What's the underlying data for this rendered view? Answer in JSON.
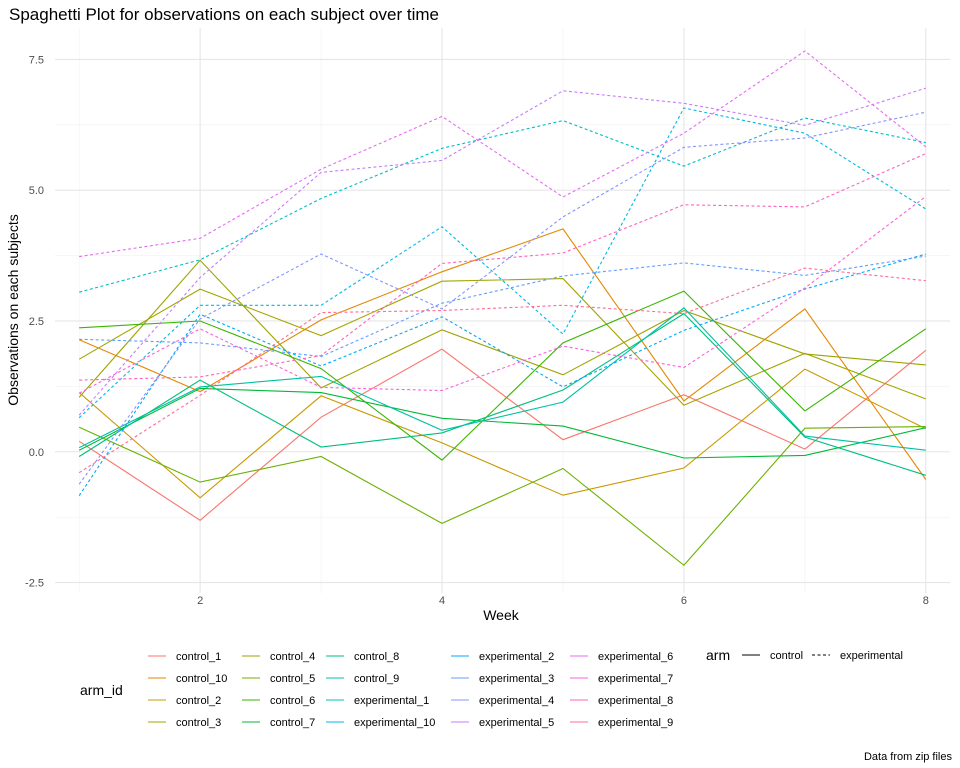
{
  "chart_data": {
    "type": "line",
    "title": "Spaghetti Plot for observations on each subject over time",
    "xlabel": "Week",
    "ylabel": "Observations on each subjects",
    "caption": "Data from zip files",
    "xlim": [
      0.8,
      8.2
    ],
    "ylim": [
      -2.7,
      8.1
    ],
    "x_ticks": [
      2,
      4,
      6,
      8
    ],
    "y_ticks": [
      -2.5,
      0.0,
      2.5,
      5.0,
      7.5
    ],
    "y_tick_labels": [
      "-2.5",
      "0.0",
      "2.5",
      "5.0",
      "7.5"
    ],
    "grid": true,
    "legend_position": "bottom",
    "x": [
      1,
      2,
      3,
      4,
      5,
      6,
      7,
      8
    ],
    "color_legend": {
      "title": "arm_id",
      "columns": [
        [
          "control_1",
          "control_10",
          "control_2",
          "control_3"
        ],
        [
          "control_4",
          "control_5",
          "control_6",
          "control_7"
        ],
        [
          "control_8",
          "control_9",
          "experimental_1",
          "experimental_10"
        ],
        [
          "experimental_2",
          "experimental_3",
          "experimental_4",
          "experimental_5"
        ],
        [
          "experimental_6",
          "experimental_7",
          "experimental_8",
          "experimental_9"
        ]
      ]
    },
    "linetype_legend": {
      "title": "arm",
      "entries": [
        {
          "label": "control",
          "dash": "solid"
        },
        {
          "label": "experimental",
          "dash": "dashed"
        }
      ]
    },
    "series": [
      {
        "name": "control_1",
        "arm": "control",
        "color": "#F8766D",
        "values": [
          0.2,
          -1.31,
          0.66,
          1.96,
          0.23,
          1.09,
          0.05,
          1.94
        ]
      },
      {
        "name": "control_10",
        "arm": "control",
        "color": "#E58700",
        "values": [
          2.14,
          1.15,
          2.52,
          3.44,
          4.26,
          0.97,
          2.73,
          -0.53
        ]
      },
      {
        "name": "control_2",
        "arm": "control",
        "color": "#C99800",
        "values": [
          1.13,
          -0.88,
          1.07,
          0.17,
          -0.83,
          -0.31,
          1.58,
          0.44
        ]
      },
      {
        "name": "control_3",
        "arm": "control",
        "color": "#A3A500",
        "values": [
          1.77,
          3.11,
          2.22,
          3.26,
          3.31,
          0.89,
          1.88,
          1.01
        ]
      },
      {
        "name": "control_4",
        "arm": "control",
        "color": "#9FA300",
        "values": [
          1.04,
          3.66,
          1.22,
          2.33,
          1.47,
          2.7,
          1.87,
          1.66
        ]
      },
      {
        "name": "control_5",
        "arm": "control",
        "color": "#6BB100",
        "values": [
          0.47,
          -0.58,
          -0.09,
          -1.37,
          -0.32,
          -2.17,
          0.45,
          0.48
        ]
      },
      {
        "name": "control_6",
        "arm": "control",
        "color": "#39B600",
        "values": [
          2.37,
          2.5,
          1.59,
          -0.16,
          2.08,
          3.07,
          0.78,
          2.35
        ]
      },
      {
        "name": "control_7",
        "arm": "control",
        "color": "#00BA38",
        "values": [
          0.03,
          1.21,
          1.13,
          0.64,
          0.49,
          -0.12,
          -0.07,
          0.46
        ]
      },
      {
        "name": "control_8",
        "arm": "control",
        "color": "#00BF7D",
        "values": [
          -0.09,
          1.37,
          0.09,
          0.36,
          1.18,
          2.64,
          0.28,
          -0.45
        ]
      },
      {
        "name": "control_9",
        "arm": "control",
        "color": "#00C1A3",
        "values": [
          0.08,
          1.24,
          1.44,
          0.41,
          0.95,
          2.75,
          0.3,
          0.03
        ]
      },
      {
        "name": "experimental_1",
        "arm": "experimental",
        "color": "#00BFC4",
        "values": [
          3.05,
          3.67,
          4.84,
          5.8,
          6.33,
          5.46,
          6.38,
          5.91
        ]
      },
      {
        "name": "experimental_10",
        "arm": "experimental",
        "color": "#00B8E7",
        "values": [
          0.65,
          2.8,
          2.8,
          4.3,
          2.25,
          6.57,
          6.09,
          4.64
        ]
      },
      {
        "name": "experimental_2",
        "arm": "experimental",
        "color": "#00A9FF",
        "values": [
          -0.84,
          2.63,
          1.64,
          2.58,
          1.24,
          2.32,
          3.11,
          3.78
        ]
      },
      {
        "name": "experimental_3",
        "arm": "experimental",
        "color": "#619CFF",
        "values": [
          2.15,
          2.08,
          1.82,
          2.84,
          3.36,
          3.61,
          3.37,
          3.74
        ]
      },
      {
        "name": "experimental_4",
        "arm": "experimental",
        "color": "#8494FF",
        "values": [
          -0.62,
          2.54,
          3.78,
          2.73,
          4.49,
          5.82,
          6.0,
          6.49
        ]
      },
      {
        "name": "experimental_5",
        "arm": "experimental",
        "color": "#C77CFF",
        "values": [
          0.7,
          3.33,
          5.34,
          5.57,
          6.9,
          6.66,
          6.24,
          6.95
        ]
      },
      {
        "name": "experimental_6",
        "arm": "experimental",
        "color": "#E76BF3",
        "values": [
          3.73,
          4.08,
          5.4,
          6.41,
          4.87,
          6.09,
          7.66,
          5.83
        ]
      },
      {
        "name": "experimental_7",
        "arm": "experimental",
        "color": "#FA62DB",
        "values": [
          1.12,
          2.35,
          1.23,
          1.17,
          2.02,
          1.61,
          3.13,
          4.88
        ]
      },
      {
        "name": "experimental_8",
        "arm": "experimental",
        "color": "#FF62BC",
        "values": [
          1.37,
          1.43,
          1.84,
          3.6,
          3.8,
          4.72,
          4.68,
          5.7
        ]
      },
      {
        "name": "experimental_9",
        "arm": "experimental",
        "color": "#FF6C91",
        "values": [
          -0.4,
          1.08,
          2.66,
          2.7,
          2.8,
          2.64,
          3.51,
          3.27
        ]
      }
    ]
  }
}
